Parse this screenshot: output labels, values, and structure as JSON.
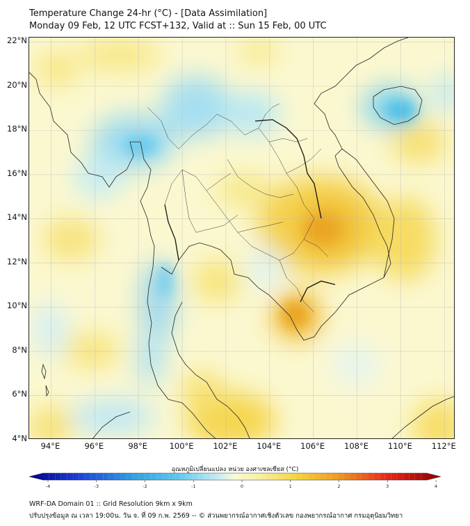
{
  "header": {
    "title_line1": "Temperature Change 24-hr (°C) - [Data Assimilation]",
    "title_line2": "Monday 09 Feb, 12 UTC FCST+132, Valid at :: Sun 15 Feb, 00 UTC"
  },
  "map": {
    "lat_labels": [
      "22°N",
      "20°N",
      "18°N",
      "16°N",
      "14°N",
      "12°N",
      "10°N",
      "8°N",
      "6°N",
      "4°N"
    ],
    "lon_labels": [
      "94°E",
      "96°E",
      "98°E",
      "100°E",
      "102°E",
      "104°E",
      "106°E",
      "108°E",
      "110°E",
      "112°E"
    ],
    "lon_range": [
      93,
      112.5
    ],
    "lat_range": [
      4,
      22.2
    ],
    "grid": true
  },
  "colorbar": {
    "title": "อุณหภูมิเปลี่ยนแปลง หน่วย องศาเซลเซียส (°C)",
    "ticks": [
      "-4",
      "-3",
      "-2",
      "-1",
      "0",
      "1",
      "2",
      "3",
      "4"
    ],
    "range": [
      -4,
      4
    ]
  },
  "footer": {
    "line1": "WRF-DA Domain 01 :: Grid Resolution 9km x 9km",
    "line2": "ปรับปรุงข้อมูล ณ เวลา 19:00น. วัน จ. ที่ 09 ก.พ. 2569 -- © ส่วนพยากรณ์อากาศเชิงตัวเลข กองพยากรณ์อากาศ กรมอุตุนิยมวิทยา"
  },
  "colors": {
    "cold_strong": "#00008b",
    "cold": "#39b4e6",
    "neutral": "#fafad4",
    "warm": "#f5d43a",
    "warm_strong": "#8b0000",
    "coastline": "#222222"
  }
}
